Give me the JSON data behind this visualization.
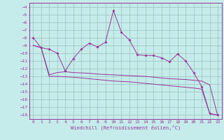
{
  "xlabel": "Windchill (Refroidissement éolien,°C)",
  "background_color": "#c5ecea",
  "grid_color": "#9bbfbe",
  "line_color": "#993399",
  "ylim": [
    -18.5,
    -3.5
  ],
  "xlim": [
    -0.5,
    23.5
  ],
  "yticks": [
    -18,
    -17,
    -16,
    -15,
    -14,
    -13,
    -12,
    -11,
    -10,
    -9,
    -8,
    -7,
    -6,
    -5,
    -4
  ],
  "xticks": [
    0,
    1,
    2,
    3,
    4,
    5,
    6,
    7,
    8,
    9,
    10,
    11,
    12,
    13,
    14,
    15,
    16,
    17,
    18,
    19,
    20,
    21,
    22,
    23
  ],
  "main_y": [
    -8.0,
    -9.3,
    -9.5,
    -10.0,
    -12.3,
    -10.7,
    -9.5,
    -8.7,
    -9.2,
    -8.6,
    -4.5,
    -7.3,
    -8.3,
    -10.2,
    -10.3,
    -10.3,
    -10.6,
    -11.1,
    -10.1,
    -11.0,
    -12.5,
    -14.3,
    -17.8,
    -18.0
  ],
  "line2_y": [
    -9.0,
    -9.3,
    -12.8,
    -12.5,
    -12.4,
    -12.5,
    -12.55,
    -12.6,
    -12.7,
    -12.75,
    -12.8,
    -12.85,
    -12.9,
    -12.95,
    -13.0,
    -13.1,
    -13.2,
    -13.3,
    -13.35,
    -13.4,
    -13.5,
    -13.6,
    -14.1,
    -18.1
  ],
  "line3_y": [
    -9.0,
    -9.3,
    -13.0,
    -13.0,
    -13.05,
    -13.1,
    -13.2,
    -13.3,
    -13.4,
    -13.5,
    -13.6,
    -13.65,
    -13.7,
    -13.8,
    -13.9,
    -14.0,
    -14.1,
    -14.2,
    -14.3,
    -14.4,
    -14.5,
    -14.65,
    -17.8,
    -18.0
  ]
}
